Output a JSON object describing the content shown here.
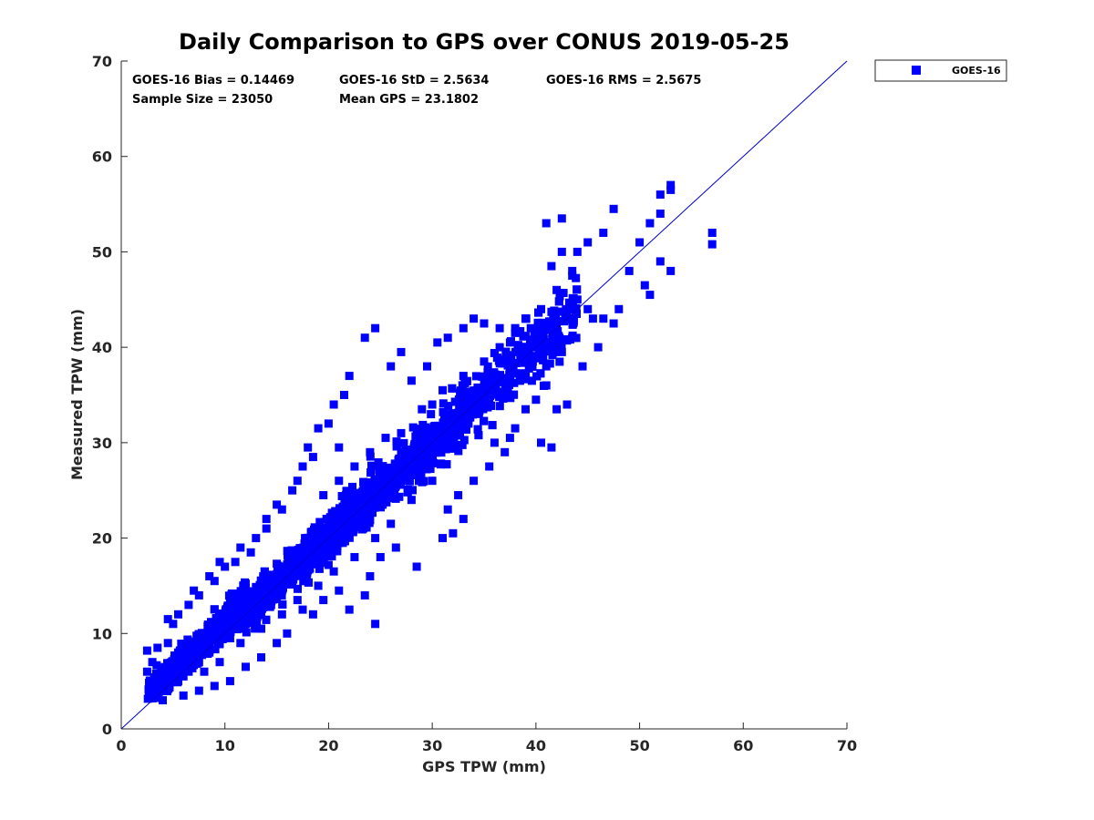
{
  "chart_data": {
    "type": "scatter",
    "title": "Daily Comparison to GPS over CONUS 2019-05-25",
    "xlabel": "GPS TPW (mm)",
    "ylabel": "Measured TPW (mm)",
    "xlim": [
      0,
      70
    ],
    "ylim": [
      0,
      70
    ],
    "xticks": [
      0,
      10,
      20,
      30,
      40,
      50,
      60,
      70
    ],
    "yticks": [
      0,
      10,
      20,
      30,
      40,
      50,
      60,
      70
    ],
    "grid": false,
    "legend_position": "outside top-right",
    "legend": [
      "GOES-16"
    ],
    "colors": {
      "points": "#0000ff",
      "reference_line": "#0000cc",
      "axis": "#262626"
    },
    "reference_line": {
      "name": "1:1 line",
      "from": [
        0,
        0
      ],
      "to": [
        70,
        70
      ]
    },
    "stats": [
      {
        "label": "GOES-16 Bias = 0.14469"
      },
      {
        "label": "GOES-16 StD = 2.5634"
      },
      {
        "label": "GOES-16 RMS = 2.5675"
      },
      {
        "label": "Sample Size = 23050"
      },
      {
        "label": "Mean GPS = 23.1802"
      }
    ],
    "series": [
      {
        "name": "GOES-16",
        "marker": "square",
        "points": [
          [
            57.0,
            52.0
          ],
          [
            57.0,
            50.8
          ],
          [
            53.0,
            56.5
          ],
          [
            53.0,
            57.0
          ],
          [
            52.0,
            56.0
          ],
          [
            51.0,
            53.0
          ],
          [
            50.0,
            51.0
          ],
          [
            49.0,
            48.0
          ],
          [
            52.0,
            54.0
          ],
          [
            53.0,
            48.0
          ],
          [
            52.0,
            49.0
          ],
          [
            50.5,
            46.5
          ],
          [
            51.0,
            45.5
          ],
          [
            48.0,
            44.0
          ],
          [
            47.5,
            54.5
          ],
          [
            46.5,
            52.0
          ],
          [
            45.0,
            51.0
          ],
          [
            44.0,
            50.0
          ],
          [
            43.5,
            48.0
          ],
          [
            42.5,
            50.0
          ],
          [
            41.5,
            48.5
          ],
          [
            42.5,
            53.5
          ],
          [
            41.0,
            53.0
          ],
          [
            46.5,
            43.0
          ],
          [
            47.5,
            42.5
          ],
          [
            46.0,
            40.0
          ],
          [
            44.5,
            38.0
          ],
          [
            43.5,
            41.0
          ],
          [
            42.5,
            39.5
          ],
          [
            41.0,
            38.0
          ],
          [
            39.5,
            38.0
          ],
          [
            38.5,
            39.0
          ],
          [
            40.0,
            41.0
          ],
          [
            41.0,
            42.0
          ],
          [
            42.0,
            42.5
          ],
          [
            43.0,
            43.5
          ],
          [
            44.0,
            45.0
          ],
          [
            45.0,
            44.0
          ],
          [
            45.5,
            43.0
          ],
          [
            39.5,
            42.0
          ],
          [
            38.5,
            40.0
          ],
          [
            37.5,
            37.5
          ],
          [
            36.0,
            36.0
          ],
          [
            35.5,
            34.5
          ],
          [
            34.5,
            33.0
          ],
          [
            33.5,
            32.0
          ],
          [
            32.5,
            31.5
          ],
          [
            31.5,
            30.5
          ],
          [
            30.5,
            29.5
          ],
          [
            29.5,
            28.0
          ],
          [
            28.5,
            27.5
          ],
          [
            27.5,
            26.5
          ],
          [
            26.5,
            25.5
          ],
          [
            25.5,
            25.0
          ],
          [
            24.5,
            24.0
          ],
          [
            23.5,
            22.5
          ],
          [
            22.5,
            21.5
          ],
          [
            21.5,
            20.5
          ],
          [
            20.5,
            19.5
          ],
          [
            19.5,
            19.0
          ],
          [
            18.5,
            17.5
          ],
          [
            17.5,
            16.5
          ],
          [
            16.5,
            15.5
          ],
          [
            15.5,
            14.5
          ],
          [
            14.5,
            14.0
          ],
          [
            13.5,
            12.5
          ],
          [
            12.5,
            11.5
          ],
          [
            11.5,
            10.5
          ],
          [
            10.5,
            9.5
          ],
          [
            9.5,
            9.0
          ],
          [
            8.5,
            8.0
          ],
          [
            7.5,
            7.0
          ],
          [
            6.5,
            6.0
          ],
          [
            5.5,
            5.0
          ],
          [
            4.5,
            4.5
          ],
          [
            3.5,
            4.0
          ],
          [
            3.0,
            3.2
          ],
          [
            2.5,
            8.2
          ],
          [
            3.5,
            8.5
          ],
          [
            4.5,
            9.0
          ],
          [
            4.5,
            11.5
          ],
          [
            5.5,
            12.0
          ],
          [
            6.5,
            13.0
          ],
          [
            7.5,
            14.0
          ],
          [
            8.5,
            16.0
          ],
          [
            9.5,
            17.5
          ],
          [
            10.0,
            17.0
          ],
          [
            11.5,
            19.0
          ],
          [
            13.0,
            20.0
          ],
          [
            14.0,
            21.0
          ],
          [
            15.0,
            23.5
          ],
          [
            16.5,
            25.0
          ],
          [
            17.5,
            27.5
          ],
          [
            18.0,
            29.5
          ],
          [
            19.0,
            31.5
          ],
          [
            20.5,
            34.0
          ],
          [
            21.5,
            35.0
          ],
          [
            22.0,
            37.0
          ],
          [
            23.5,
            41.0
          ],
          [
            24.5,
            42.0
          ],
          [
            26.0,
            38.0
          ],
          [
            27.0,
            39.5
          ],
          [
            28.0,
            36.5
          ],
          [
            29.5,
            38.0
          ],
          [
            30.5,
            40.5
          ],
          [
            31.5,
            41.0
          ],
          [
            33.0,
            42.0
          ],
          [
            34.0,
            43.0
          ],
          [
            35.0,
            42.5
          ],
          [
            36.5,
            42.0
          ],
          [
            37.5,
            40.5
          ],
          [
            38.0,
            42.0
          ],
          [
            32.0,
            20.5
          ],
          [
            31.0,
            20.0
          ],
          [
            33.0,
            22.0
          ],
          [
            31.5,
            23.0
          ],
          [
            32.5,
            24.5
          ],
          [
            34.0,
            26.0
          ],
          [
            35.5,
            27.5
          ],
          [
            37.0,
            29.0
          ],
          [
            38.0,
            31.5
          ],
          [
            39.0,
            33.5
          ],
          [
            40.0,
            34.5
          ],
          [
            41.0,
            36.0
          ],
          [
            42.0,
            33.5
          ],
          [
            43.0,
            34.0
          ],
          [
            40.5,
            30.0
          ],
          [
            41.5,
            29.5
          ],
          [
            37.5,
            30.5
          ],
          [
            36.0,
            30.0
          ],
          [
            28.5,
            17.0
          ],
          [
            26.5,
            19.0
          ],
          [
            25.0,
            18.0
          ],
          [
            24.0,
            16.0
          ],
          [
            23.5,
            14.0
          ],
          [
            24.5,
            11.0
          ],
          [
            22.0,
            12.5
          ],
          [
            21.0,
            14.5
          ],
          [
            19.5,
            13.5
          ],
          [
            18.5,
            12.0
          ],
          [
            17.5,
            12.5
          ],
          [
            16.0,
            10.0
          ],
          [
            15.0,
            9.0
          ],
          [
            13.5,
            7.5
          ],
          [
            12.0,
            6.5
          ],
          [
            10.5,
            5.0
          ],
          [
            9.0,
            4.5
          ],
          [
            7.5,
            4.0
          ],
          [
            6.0,
            3.5
          ],
          [
            4.0,
            3.0
          ],
          [
            20.0,
            32.0
          ],
          [
            21.0,
            29.5
          ],
          [
            18.5,
            28.5
          ],
          [
            17.0,
            26.0
          ],
          [
            15.5,
            23.0
          ],
          [
            14.0,
            22.0
          ],
          [
            12.5,
            18.5
          ],
          [
            11.0,
            17.5
          ],
          [
            9.0,
            15.5
          ],
          [
            7.0,
            14.5
          ],
          [
            5.0,
            11.0
          ],
          [
            3.0,
            7.0
          ],
          [
            2.5,
            6.0
          ],
          [
            27.0,
            31.0
          ],
          [
            25.5,
            30.5
          ],
          [
            24.0,
            29.0
          ],
          [
            22.5,
            27.5
          ],
          [
            21.0,
            26.0
          ],
          [
            19.5,
            24.5
          ],
          [
            29.0,
            33.5
          ],
          [
            30.0,
            34.0
          ],
          [
            31.0,
            35.5
          ],
          [
            33.0,
            37.0
          ],
          [
            35.0,
            38.5
          ],
          [
            36.5,
            40.0
          ],
          [
            38.0,
            41.5
          ],
          [
            39.0,
            43.0
          ],
          [
            40.5,
            44.0
          ],
          [
            42.0,
            46.0
          ],
          [
            43.5,
            47.5
          ],
          [
            30.0,
            26.0
          ],
          [
            28.0,
            24.0
          ],
          [
            26.0,
            21.5
          ],
          [
            24.5,
            20.0
          ],
          [
            22.5,
            18.0
          ],
          [
            20.5,
            16.5
          ],
          [
            19.0,
            15.0
          ],
          [
            17.0,
            13.5
          ],
          [
            15.5,
            12.0
          ],
          [
            13.5,
            10.5
          ],
          [
            11.5,
            9.0
          ],
          [
            9.5,
            7.0
          ],
          [
            8.0,
            6.0
          ],
          [
            6.0,
            5.5
          ],
          [
            4.5,
            6.5
          ]
        ]
      }
    ]
  }
}
